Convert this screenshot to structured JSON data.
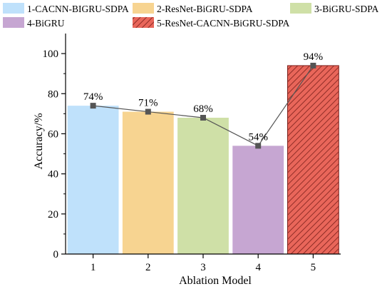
{
  "chart_data": {
    "type": "bar",
    "categories": [
      "1",
      "2",
      "3",
      "4",
      "5"
    ],
    "values": [
      74,
      71,
      68,
      54,
      94
    ],
    "data_labels": [
      "74%",
      "71%",
      "68%",
      "54%",
      "94%"
    ],
    "xlabel": "Ablation Model",
    "ylabel": "Accuracy/%",
    "ylim": [
      0,
      110
    ],
    "yticks": [
      0,
      20,
      40,
      60,
      80,
      100
    ],
    "grid": false,
    "legend_position": "top",
    "overlay_line": {
      "values": [
        74,
        71,
        68,
        54,
        94
      ],
      "color": "#555555",
      "marker": "square"
    },
    "series": [
      {
        "name": "1-CACNN-BIGRU-SDPA",
        "color": "#bfe1fb",
        "hatch": false
      },
      {
        "name": "2-ResNet-BiGRU-SDPA",
        "color": "#f7d491",
        "hatch": false
      },
      {
        "name": "3-BiGRU-SDPA",
        "color": "#cfe0a7",
        "hatch": false
      },
      {
        "name": "4-BiGRU",
        "color": "#c6a6d2",
        "hatch": false
      },
      {
        "name": "5-ResNet-CACNN-BiGRU-SDPA",
        "color": "#e9665a",
        "hatch": true
      }
    ]
  }
}
